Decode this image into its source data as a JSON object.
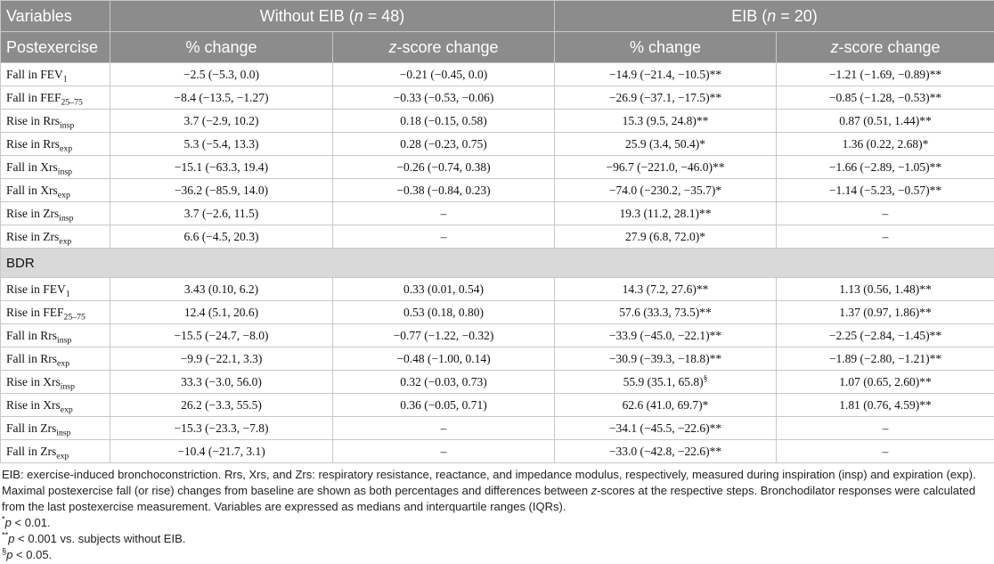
{
  "header": {
    "variables": "Variables",
    "group_without_prefix": "Without EIB (",
    "group_without_n": "n",
    "group_without_suffix": " = 48)",
    "group_with_prefix": "EIB (",
    "group_with_n": "n",
    "group_with_suffix": " = 20)",
    "postexercise": "Postexercise",
    "pct_change": "% change",
    "z_prefix": "z",
    "z_suffix": "-score change"
  },
  "post_rows": [
    {
      "pre": "Fall in FEV",
      "sub": "1",
      "a": "−2.5 (−5.3, 0.0)",
      "b": "−0.21 (−0.45, 0.0)",
      "c": "−14.9 (−21.4, −10.5)**",
      "d": "−1.21 (−1.69, −0.89)**"
    },
    {
      "pre": "Fall in FEF",
      "sub": "25–75",
      "a": "−8.4 (−13.5, −1.27)",
      "b": "−0.33 (−0.53, −0.06)",
      "c": "−26.9 (−37.1, −17.5)**",
      "d": "−0.85 (−1.28, −0.53)**"
    },
    {
      "pre": "Rise in Rrs",
      "sub": "insp",
      "a": "3.7 (−2.9, 10.2)",
      "b": "0.18 (−0.15, 0.58)",
      "c": "15.3 (9.5, 24.8)**",
      "d": "0.87 (0.51, 1.44)**"
    },
    {
      "pre": "Rise in Rrs",
      "sub": "exp",
      "a": "5.3 (−5.4, 13.3)",
      "b": "0.28 (−0.23, 0.75)",
      "c": "25.9 (3.4, 50.4)*",
      "d": "1.36 (0.22, 2.68)*"
    },
    {
      "pre": "Fall in Xrs",
      "sub": "insp",
      "a": "−15.1 (−63.3, 19.4)",
      "b": "−0.26 (−0.74, 0.38)",
      "c": "−96.7 (−221.0, −46.0)**",
      "d": "−1.66 (−2.89, −1.05)**"
    },
    {
      "pre": "Fall in Xrs",
      "sub": "exp",
      "a": "−36.2 (−85.9, 14.0)",
      "b": "−0.38 (−0.84, 0.23)",
      "c": "−74.0 (−230.2, −35.7)*",
      "d": "−1.14 (−5.23, −0.57)**"
    },
    {
      "pre": "Rise in Zrs",
      "sub": "insp",
      "a": "3.7 (−2.6, 11.5)",
      "b": "–",
      "c": "19.3 (11.2, 28.1)**",
      "d": "–"
    },
    {
      "pre": "Rise in Zrs",
      "sub": "exp",
      "a": "6.6 (−4.5, 20.3)",
      "b": "–",
      "c": "27.9 (6.8, 72.0)*",
      "d": "–"
    }
  ],
  "bdr_label": "BDR",
  "bdr_rows": [
    {
      "pre": "Rise in FEV",
      "sub": "1",
      "a": "3.43 (0.10, 6.2)",
      "b": "0.33 (0.01, 0.54)",
      "c": "14.3 (7.2, 27.6)**",
      "d": "1.13 (0.56, 1.48)**"
    },
    {
      "pre": "Rise in FEF",
      "sub": "25–75",
      "a": "12.4 (5.1, 20.6)",
      "b": "0.53 (0.18, 0.80)",
      "c": "57.6 (33.3, 73.5)**",
      "d": "1.37 (0.97, 1.86)**"
    },
    {
      "pre": "Fall in Rrs",
      "sub": "insp",
      "a": "−15.5 (−24.7, −8.0)",
      "b": "−0.77 (−1.22, −0.32)",
      "c": "−33.9 (−45.0, −22.1)**",
      "d": "−2.25 (−2.84, −1.45)**"
    },
    {
      "pre": "Fall in Rrs",
      "sub": "exp",
      "a": "−9.9 (−22.1, 3.3)",
      "b": "−0.48 (−1.00, 0.14)",
      "c": "−30.9 (−39.3, −18.8)**",
      "d": "−1.89 (−2.80, −1.21)**"
    },
    {
      "pre": "Rise in Xrs",
      "sub": "insp",
      "a": "33.3 (−3.0, 56.0)",
      "b": "0.32 (−0.03, 0.73)",
      "c": "55.9 (35.1, 65.8)",
      "c_sup": "§",
      "d": "1.07 (0.65, 2.60)**"
    },
    {
      "pre": "Rise in Xrs",
      "sub": "exp",
      "a": "26.2 (−3.3, 55.5)",
      "b": "0.36 (−0.05, 0.71)",
      "c": "62.6 (41.0, 69.7)*",
      "d": "1.81 (0.76, 4.59)**"
    },
    {
      "pre": "Fall in Zrs",
      "sub": "insp",
      "a": "−15.3 (−23.3, −7.8)",
      "b": "–",
      "c": "−34.1 (−45.5, −22.6)**",
      "d": "–"
    },
    {
      "pre": "Fall in Zrs",
      "sub": "exp",
      "a": "−10.4 (−21.7, 3.1)",
      "b": "–",
      "c": "−33.0 (−42.8, −22.6)**",
      "d": "–"
    }
  ],
  "notes": {
    "p1_a": "EIB: exercise-induced bronchoconstriction. Rrs, Xrs, and Zrs: respiratory resistance, reactance, and impedance modulus, respectively, measured during inspiration (insp) and expiration (exp). Maximal postexercise fall (or rise) changes from baseline are shown as both percentages and differences between ",
    "p1_z": "z",
    "p1_b": "-scores at the respective steps. Bronchodilator responses were calculated from the last postexercise measurement. Variables are expressed as medians and interquartile ranges (IQRs).",
    "n1_sym": "*",
    "n1_p": "p",
    "n1_rest": " < 0.01.",
    "n2_sym": "**",
    "n2_p": "p",
    "n2_rest": " < 0.001 vs. subjects without EIB.",
    "n3_sym": "§",
    "n3_p": "p",
    "n3_rest": " < 0.05."
  }
}
